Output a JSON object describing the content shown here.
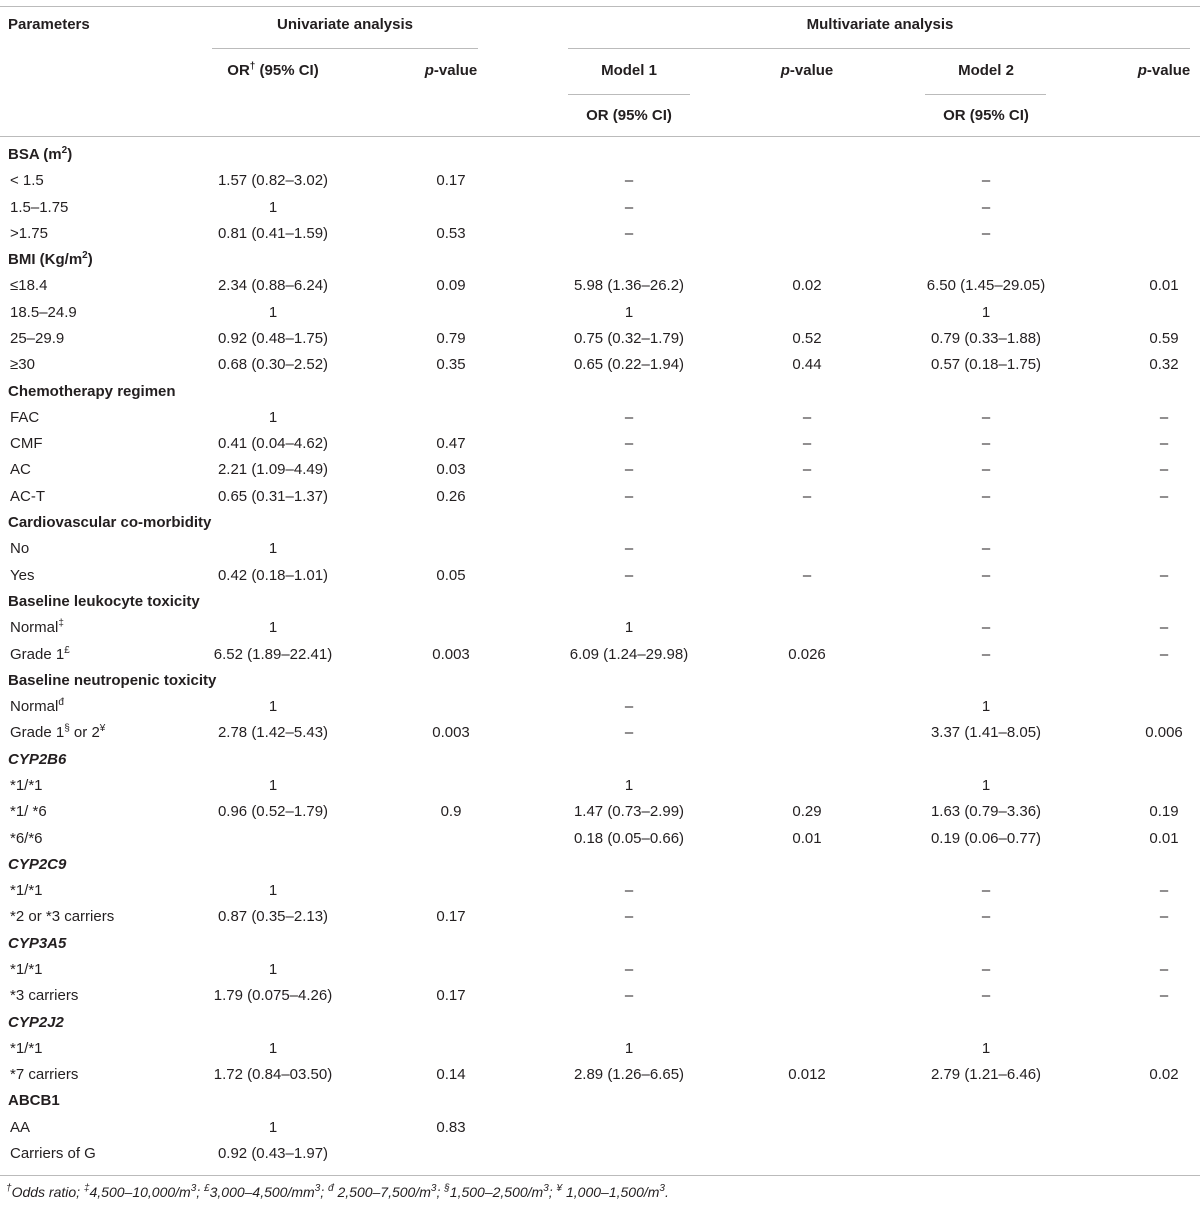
{
  "header": {
    "parameters": "Parameters",
    "univariate": "Univariate analysis",
    "multivariate": "Multivariate analysis",
    "columns": [
      [
        "OR",
        {
          "sup": "†"
        },
        " (95% CI)"
      ],
      [
        {
          "i": "p"
        },
        "-value"
      ],
      "Model 1",
      [
        {
          "i": "p"
        },
        "-value"
      ],
      "Model 2",
      [
        {
          "i": "p"
        },
        "-value"
      ]
    ],
    "sub": [
      "OR (95% CI)",
      "OR (95% CI)"
    ]
  },
  "table": {
    "rows": [
      {
        "section": [
          "BSA (m",
          {
            "sup": "2"
          },
          ")"
        ]
      },
      {
        "cells": [
          "< 1.5",
          "1.57 (0.82–3.02)",
          "0.17",
          "–",
          null,
          "–",
          null
        ]
      },
      {
        "cells": [
          "1.5–1.75",
          "1",
          null,
          "–",
          null,
          "–",
          null
        ]
      },
      {
        "cells": [
          ">1.75",
          "0.81 (0.41–1.59)",
          "0.53",
          "–",
          null,
          "–",
          null
        ]
      },
      {
        "section": [
          "BMI (Kg/m",
          {
            "sup": "2"
          },
          ")"
        ]
      },
      {
        "cells": [
          "≤18.4",
          "2.34 (0.88–6.24)",
          "0.09",
          "5.98 (1.36–26.2)",
          "0.02",
          "6.50 (1.45–29.05)",
          "0.01"
        ]
      },
      {
        "cells": [
          "18.5–24.9",
          "1",
          null,
          "1",
          null,
          "1",
          null
        ]
      },
      {
        "cells": [
          "25–29.9",
          "0.92 (0.48–1.75)",
          "0.79",
          "0.75 (0.32–1.79)",
          "0.52",
          "0.79 (0.33–1.88)",
          "0.59"
        ]
      },
      {
        "cells": [
          "≥30",
          "0.68 (0.30–2.52)",
          "0.35",
          "0.65 (0.22–1.94)",
          "0.44",
          "0.57 (0.18–1.75)",
          "0.32"
        ]
      },
      {
        "section": "Chemotherapy regimen"
      },
      {
        "cells": [
          "FAC",
          "1",
          null,
          "–",
          "–",
          "–",
          "–"
        ]
      },
      {
        "cells": [
          "CMF",
          "0.41 (0.04–4.62)",
          "0.47",
          "–",
          "–",
          "–",
          "–"
        ]
      },
      {
        "cells": [
          "AC",
          "2.21 (1.09–4.49)",
          "0.03",
          "–",
          "–",
          "–",
          "–"
        ]
      },
      {
        "cells": [
          "AC-T",
          "0.65 (0.31–1.37)",
          "0.26",
          "–",
          "–",
          "–",
          "–"
        ]
      },
      {
        "section": "Cardiovascular co-morbidity"
      },
      {
        "cells": [
          "No",
          "1",
          null,
          "–",
          null,
          "–",
          null
        ]
      },
      {
        "cells": [
          "Yes",
          "0.42 (0.18–1.01)",
          "0.05",
          "–",
          "–",
          "–",
          "–"
        ]
      },
      {
        "section": "Baseline leukocyte toxicity"
      },
      {
        "cells": [
          [
            "Normal",
            {
              "sup": "‡"
            }
          ],
          "1",
          null,
          "1",
          null,
          "–",
          "–"
        ]
      },
      {
        "cells": [
          [
            "Grade 1",
            {
              "sup": "£"
            }
          ],
          "6.52 (1.89–22.41)",
          "0.003",
          "6.09 (1.24–29.98)",
          "0.026",
          "–",
          "–"
        ]
      },
      {
        "section": "Baseline neutropenic toxicity"
      },
      {
        "cells": [
          [
            "Normal",
            {
              "sup": "đ"
            }
          ],
          "1",
          null,
          "–",
          null,
          "1",
          null
        ]
      },
      {
        "cells": [
          [
            "Grade 1",
            {
              "sup": "§"
            },
            " or 2",
            {
              "sup": "¥"
            }
          ],
          "2.78 (1.42–5.43)",
          "0.003",
          "–",
          null,
          "3.37 (1.41–8.05)",
          "0.006"
        ]
      },
      {
        "section": "CYP2B6",
        "italic": true
      },
      {
        "cells": [
          "*1/*1",
          "1",
          null,
          "1",
          null,
          "1",
          null
        ]
      },
      {
        "cells": [
          "*1/ *6",
          "0.96 (0.52–1.79)",
          "0.9",
          "1.47 (0.73–2.99)",
          "0.29",
          "1.63 (0.79–3.36)",
          "0.19"
        ]
      },
      {
        "cells": [
          "*6/*6",
          null,
          null,
          "0.18 (0.05–0.66)",
          "0.01",
          "0.19 (0.06–0.77)",
          "0.01"
        ]
      },
      {
        "section": "CYP2C9",
        "italic": true
      },
      {
        "cells": [
          "*1/*1",
          "1",
          null,
          "–",
          null,
          "–",
          "–"
        ]
      },
      {
        "cells": [
          "*2 or *3 carriers",
          "0.87 (0.35–2.13)",
          "0.17",
          "–",
          null,
          "–",
          "–"
        ]
      },
      {
        "section": "CYP3A5",
        "italic": true
      },
      {
        "cells": [
          "*1/*1",
          "1",
          null,
          "–",
          null,
          "–",
          "–"
        ]
      },
      {
        "cells": [
          "*3 carriers",
          "1.79 (0.075–4.26)",
          "0.17",
          "–",
          null,
          "–",
          "–"
        ]
      },
      {
        "section": "CYP2J2",
        "italic": true
      },
      {
        "cells": [
          "*1/*1",
          "1",
          null,
          "1",
          null,
          "1",
          null
        ]
      },
      {
        "cells": [
          "*7 carriers",
          "1.72 (0.84–03.50)",
          "0.14",
          "2.89 (1.26–6.65)",
          "0.012",
          "2.79 (1.21–6.46)",
          "0.02"
        ]
      },
      {
        "section": "ABCB1"
      },
      {
        "cells": [
          "AA",
          "1",
          "0.83",
          null,
          null,
          null,
          null
        ]
      },
      {
        "cells": [
          "Carriers of G",
          "0.92 (0.43–1.97)",
          null,
          null,
          null,
          null,
          null
        ]
      }
    ]
  },
  "footnote": [
    {
      "sup": "†"
    },
    "Odds ratio; ",
    {
      "sup": "‡"
    },
    "4,500–10,000/m",
    {
      "sup": "3"
    },
    "; ",
    {
      "sup": "£"
    },
    "3,000–4,500/mm",
    {
      "sup": "3"
    },
    "; ",
    {
      "sup": "đ"
    },
    " 2,500–7,500/m",
    {
      "sup": "3"
    },
    "; ",
    {
      "sup": "§"
    },
    "1,500–2,500/m",
    {
      "sup": "3"
    },
    "; ",
    {
      "sup": "¥"
    },
    " 1,000–1,500/m",
    {
      "sup": "3"
    },
    "."
  ]
}
